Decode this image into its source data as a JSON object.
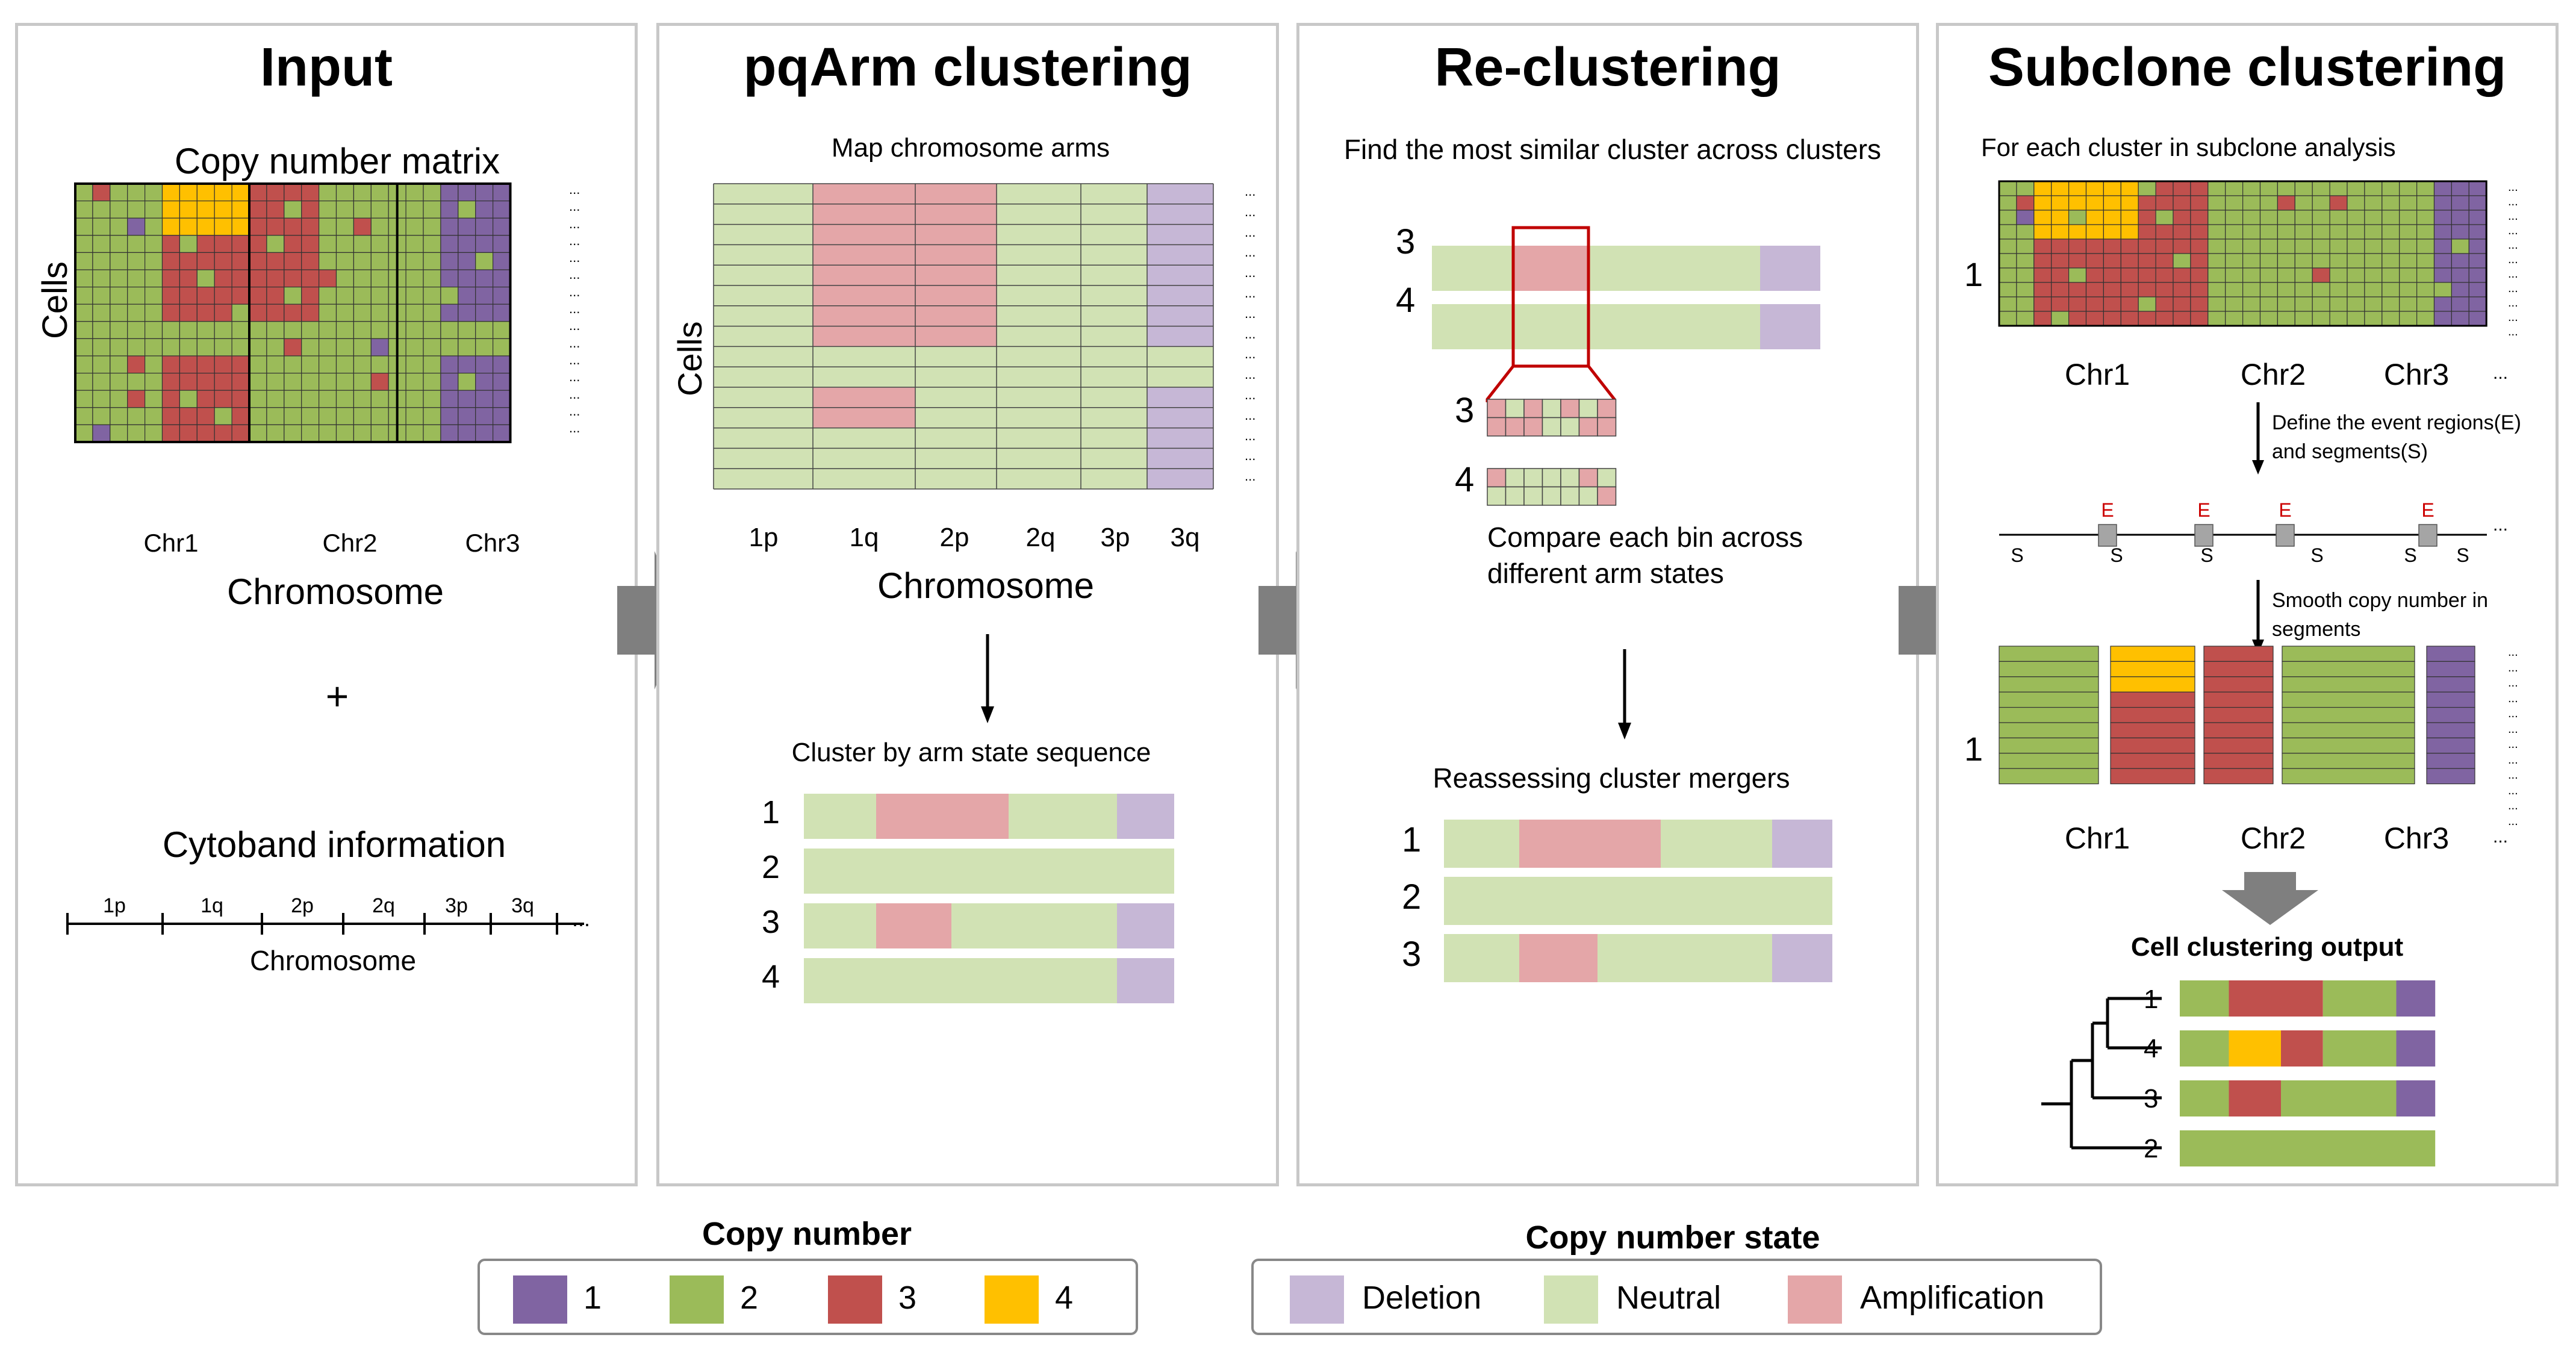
{
  "colors": {
    "cn1": "#8064a2",
    "cn2": "#9bbb59",
    "cn3": "#c0504d",
    "cn4": "#ffc000",
    "deletion": "#c6b7d6",
    "neutral": "#d1e2b4",
    "amplification": "#e4a6a8",
    "event": "#cc0000"
  },
  "panels": {
    "input": {
      "title": "Input",
      "matrix_title": "Copy number matrix",
      "y_label": "Cells",
      "chr_labels": [
        "Chr1",
        "Chr2",
        "Chr3"
      ],
      "x_label": "Chromosome",
      "plus": "+",
      "cytoband_title": "Cytoband information",
      "cytoband_arms": [
        "1p",
        "1q",
        "2p",
        "2q",
        "3p",
        "3q"
      ],
      "cytoband_x_label": "Chromosome",
      "ellipsis": "..."
    },
    "pqarm": {
      "title": "pqArm clustering",
      "map_title": "Map chromosome arms",
      "y_label": "Cells",
      "arm_labels": [
        "1p",
        "1q",
        "2p",
        "2q",
        "3p",
        "3q"
      ],
      "x_label": "Chromosome",
      "cluster_title": "Cluster by arm state sequence",
      "clusters": [
        "1",
        "2",
        "3",
        "4"
      ]
    },
    "recluster": {
      "title": "Re-clustering",
      "find_title": "Find the most similar cluster across clusters",
      "compare_ids": [
        "3",
        "4"
      ],
      "bin_ids": [
        "3",
        "4"
      ],
      "compare_text_1": "Compare each bin across",
      "compare_text_2": "different arm states",
      "merge_title": "Reassessing cluster mergers",
      "clusters": [
        "1",
        "2",
        "3"
      ]
    },
    "subclone": {
      "title": "Subclone clustering",
      "for_each": "For each cluster in subclone analysis",
      "cluster_id": "1",
      "chr_labels": [
        "Chr1",
        "Chr2",
        "Chr3"
      ],
      "define_text_1": "Define the event regions(E)",
      "define_text_2": "and segments(S)",
      "event_label": "E",
      "segment_label": "S",
      "smooth_text_1": "Smooth copy number in",
      "smooth_text_2": "segments",
      "output_title": "Cell clustering output",
      "output_ids": [
        "1",
        "4",
        "3",
        "2"
      ]
    }
  },
  "legends": {
    "copy_number": {
      "title": "Copy number",
      "items": [
        {
          "label": "1",
          "color": "#8064a2"
        },
        {
          "label": "2",
          "color": "#9bbb59"
        },
        {
          "label": "3",
          "color": "#c0504d"
        },
        {
          "label": "4",
          "color": "#ffc000"
        }
      ]
    },
    "copy_number_state": {
      "title": "Copy number state",
      "items": [
        {
          "label": "Deletion",
          "color": "#c6b7d6"
        },
        {
          "label": "Neutral",
          "color": "#d1e2b4"
        },
        {
          "label": "Amplification",
          "color": "#e4a6a8"
        }
      ]
    }
  }
}
